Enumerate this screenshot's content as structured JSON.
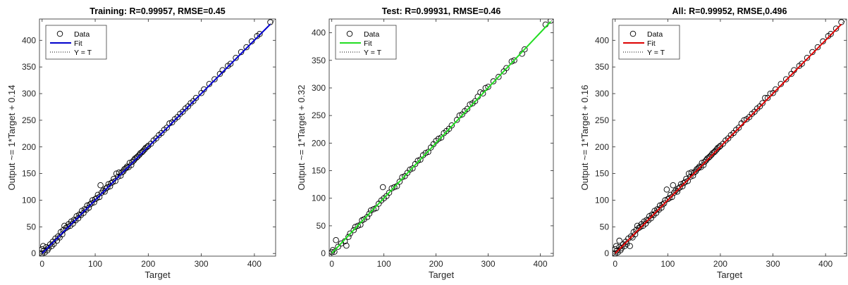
{
  "chart_data": [
    {
      "type": "scatter",
      "title": "Training: R=0.99957, RMSE=0.45",
      "xlabel": "Target",
      "ylabel": "Output ~= 1*Target + 0.14",
      "xlim": [
        -5,
        440
      ],
      "ylim": [
        -5,
        440
      ],
      "xticks": [
        "0",
        "100",
        "200",
        "300",
        "400"
      ],
      "yticks": [
        "0",
        "50",
        "100",
        "150",
        "200",
        "250",
        "300",
        "350",
        "400"
      ],
      "legend": {
        "placement": "top-left",
        "entries": [
          "Data",
          "Fit",
          "Y = T"
        ]
      },
      "fit": {
        "slope": 1,
        "intercept": 0.14,
        "color": "#0000cc"
      },
      "grid": false,
      "points": [
        [
          0,
          0
        ],
        [
          0,
          8
        ],
        [
          2,
          14
        ],
        [
          3,
          5
        ],
        [
          5,
          2
        ],
        [
          8,
          12
        ],
        [
          10,
          6
        ],
        [
          12,
          10
        ],
        [
          15,
          17
        ],
        [
          18,
          14
        ],
        [
          20,
          22
        ],
        [
          22,
          18
        ],
        [
          25,
          28
        ],
        [
          28,
          24
        ],
        [
          30,
          32
        ],
        [
          33,
          30
        ],
        [
          35,
          40
        ],
        [
          38,
          36
        ],
        [
          40,
          44
        ],
        [
          42,
          52
        ],
        [
          45,
          48
        ],
        [
          48,
          50
        ],
        [
          50,
          55
        ],
        [
          53,
          52
        ],
        [
          55,
          60
        ],
        [
          58,
          56
        ],
        [
          60,
          63
        ],
        [
          63,
          62
        ],
        [
          65,
          70
        ],
        [
          68,
          66
        ],
        [
          70,
          73
        ],
        [
          73,
          72
        ],
        [
          75,
          80
        ],
        [
          78,
          76
        ],
        [
          80,
          83
        ],
        [
          83,
          82
        ],
        [
          85,
          90
        ],
        [
          88,
          86
        ],
        [
          90,
          92
        ],
        [
          93,
          94
        ],
        [
          95,
          100
        ],
        [
          98,
          96
        ],
        [
          100,
          102
        ],
        [
          103,
          104
        ],
        [
          105,
          110
        ],
        [
          108,
          106
        ],
        [
          110,
          128
        ],
        [
          112,
          114
        ],
        [
          115,
          118
        ],
        [
          118,
          116
        ],
        [
          120,
          122
        ],
        [
          123,
          124
        ],
        [
          125,
          130
        ],
        [
          128,
          126
        ],
        [
          130,
          132
        ],
        [
          133,
          134
        ],
        [
          135,
          140
        ],
        [
          138,
          136
        ],
        [
          140,
          150
        ],
        [
          143,
          144
        ],
        [
          145,
          152
        ],
        [
          148,
          146
        ],
        [
          150,
          152
        ],
        [
          153,
          154
        ],
        [
          155,
          158
        ],
        [
          158,
          160
        ],
        [
          160,
          163
        ],
        [
          163,
          162
        ],
        [
          165,
          170
        ],
        [
          168,
          166
        ],
        [
          170,
          172
        ],
        [
          173,
          175
        ],
        [
          175,
          178
        ],
        [
          178,
          180
        ],
        [
          180,
          182
        ],
        [
          183,
          185
        ],
        [
          185,
          188
        ],
        [
          188,
          190
        ],
        [
          190,
          192
        ],
        [
          193,
          195
        ],
        [
          195,
          198
        ],
        [
          198,
          200
        ],
        [
          200,
          202
        ],
        [
          205,
          206
        ],
        [
          210,
          212
        ],
        [
          215,
          216
        ],
        [
          220,
          222
        ],
        [
          225,
          226
        ],
        [
          230,
          232
        ],
        [
          235,
          236
        ],
        [
          240,
          244
        ],
        [
          245,
          246
        ],
        [
          250,
          252
        ],
        [
          255,
          256
        ],
        [
          260,
          262
        ],
        [
          265,
          266
        ],
        [
          270,
          272
        ],
        [
          275,
          276
        ],
        [
          280,
          282
        ],
        [
          285,
          286
        ],
        [
          290,
          292
        ],
        [
          300,
          301
        ],
        [
          305,
          308
        ],
        [
          315,
          318
        ],
        [
          325,
          327
        ],
        [
          335,
          337
        ],
        [
          340,
          344
        ],
        [
          350,
          352
        ],
        [
          355,
          356
        ],
        [
          365,
          367
        ],
        [
          375,
          378
        ],
        [
          385,
          387
        ],
        [
          395,
          398
        ],
        [
          405,
          408
        ],
        [
          410,
          412
        ],
        [
          430,
          434
        ]
      ]
    },
    {
      "type": "scatter",
      "title": "Test: R=0.99931, RMSE=0.46",
      "xlabel": "Target",
      "ylabel": "Output ~= 1*Target + 0.32",
      "xlim": [
        -5,
        425
      ],
      "ylim": [
        -5,
        425
      ],
      "xticks": [
        "0",
        "100",
        "200",
        "300",
        "400"
      ],
      "yticks": [
        "0",
        "50",
        "100",
        "150",
        "200",
        "250",
        "300",
        "350",
        "400"
      ],
      "legend": {
        "placement": "top-left",
        "entries": [
          "Data",
          "Fit",
          "Y = T"
        ]
      },
      "fit": {
        "slope": 1,
        "intercept": 0.32,
        "color": "#22dd22"
      },
      "grid": false,
      "points": [
        [
          0,
          2
        ],
        [
          2,
          6
        ],
        [
          5,
          3
        ],
        [
          8,
          24
        ],
        [
          12,
          12
        ],
        [
          18,
          18
        ],
        [
          25,
          22
        ],
        [
          28,
          14
        ],
        [
          32,
          30
        ],
        [
          35,
          36
        ],
        [
          42,
          42
        ],
        [
          45,
          48
        ],
        [
          50,
          50
        ],
        [
          55,
          52
        ],
        [
          58,
          60
        ],
        [
          62,
          62
        ],
        [
          68,
          66
        ],
        [
          72,
          72
        ],
        [
          75,
          78
        ],
        [
          80,
          80
        ],
        [
          85,
          82
        ],
        [
          90,
          90
        ],
        [
          95,
          96
        ],
        [
          98,
          120
        ],
        [
          100,
          100
        ],
        [
          105,
          104
        ],
        [
          110,
          110
        ],
        [
          115,
          118
        ],
        [
          120,
          120
        ],
        [
          125,
          122
        ],
        [
          130,
          130
        ],
        [
          135,
          138
        ],
        [
          140,
          140
        ],
        [
          145,
          146
        ],
        [
          150,
          152
        ],
        [
          155,
          154
        ],
        [
          160,
          162
        ],
        [
          165,
          168
        ],
        [
          170,
          170
        ],
        [
          175,
          178
        ],
        [
          180,
          182
        ],
        [
          185,
          184
        ],
        [
          190,
          192
        ],
        [
          195,
          198
        ],
        [
          200,
          204
        ],
        [
          205,
          208
        ],
        [
          210,
          210
        ],
        [
          215,
          218
        ],
        [
          220,
          222
        ],
        [
          225,
          226
        ],
        [
          230,
          232
        ],
        [
          240,
          242
        ],
        [
          245,
          250
        ],
        [
          250,
          252
        ],
        [
          255,
          258
        ],
        [
          260,
          262
        ],
        [
          265,
          270
        ],
        [
          270,
          272
        ],
        [
          275,
          276
        ],
        [
          280,
          284
        ],
        [
          285,
          292
        ],
        [
          290,
          290
        ],
        [
          295,
          300
        ],
        [
          300,
          302
        ],
        [
          310,
          312
        ],
        [
          320,
          320
        ],
        [
          330,
          330
        ],
        [
          335,
          336
        ],
        [
          345,
          348
        ],
        [
          350,
          350
        ],
        [
          365,
          362
        ],
        [
          370,
          370
        ],
        [
          410,
          415
        ],
        [
          420,
          422
        ]
      ]
    },
    {
      "type": "scatter",
      "title": "All: R=0.99952, RMSE,0.496",
      "xlabel": "Target",
      "ylabel": "Output ~= 1*Target + 0.16",
      "xlim": [
        -5,
        440
      ],
      "ylim": [
        -5,
        440
      ],
      "xticks": [
        "0",
        "100",
        "200",
        "300",
        "400"
      ],
      "yticks": [
        "0",
        "50",
        "100",
        "150",
        "200",
        "250",
        "300",
        "350",
        "400"
      ],
      "legend": {
        "placement": "top-left",
        "entries": [
          "Data",
          "Fit",
          "Y = T"
        ]
      },
      "fit": {
        "slope": 1,
        "intercept": 0.16,
        "color": "#dd0000"
      },
      "grid": false,
      "points": [
        [
          0,
          0
        ],
        [
          0,
          8
        ],
        [
          2,
          14
        ],
        [
          3,
          5
        ],
        [
          5,
          2
        ],
        [
          8,
          12
        ],
        [
          8,
          24
        ],
        [
          10,
          6
        ],
        [
          12,
          10
        ],
        [
          15,
          17
        ],
        [
          18,
          14
        ],
        [
          20,
          22
        ],
        [
          22,
          18
        ],
        [
          25,
          28
        ],
        [
          28,
          14
        ],
        [
          30,
          32
        ],
        [
          33,
          30
        ],
        [
          35,
          40
        ],
        [
          38,
          36
        ],
        [
          40,
          44
        ],
        [
          42,
          52
        ],
        [
          45,
          48
        ],
        [
          48,
          50
        ],
        [
          50,
          55
        ],
        [
          53,
          52
        ],
        [
          55,
          60
        ],
        [
          58,
          56
        ],
        [
          60,
          63
        ],
        [
          63,
          62
        ],
        [
          65,
          70
        ],
        [
          68,
          66
        ],
        [
          70,
          73
        ],
        [
          73,
          72
        ],
        [
          75,
          80
        ],
        [
          78,
          76
        ],
        [
          80,
          83
        ],
        [
          83,
          82
        ],
        [
          85,
          90
        ],
        [
          88,
          86
        ],
        [
          90,
          92
        ],
        [
          93,
          94
        ],
        [
          95,
          100
        ],
        [
          98,
          120
        ],
        [
          100,
          102
        ],
        [
          103,
          104
        ],
        [
          105,
          110
        ],
        [
          108,
          106
        ],
        [
          110,
          128
        ],
        [
          112,
          114
        ],
        [
          115,
          118
        ],
        [
          118,
          116
        ],
        [
          120,
          122
        ],
        [
          123,
          124
        ],
        [
          125,
          130
        ],
        [
          128,
          126
        ],
        [
          130,
          132
        ],
        [
          133,
          134
        ],
        [
          135,
          140
        ],
        [
          138,
          136
        ],
        [
          140,
          150
        ],
        [
          143,
          144
        ],
        [
          145,
          152
        ],
        [
          148,
          146
        ],
        [
          150,
          152
        ],
        [
          153,
          154
        ],
        [
          155,
          158
        ],
        [
          158,
          160
        ],
        [
          160,
          163
        ],
        [
          163,
          162
        ],
        [
          165,
          170
        ],
        [
          168,
          166
        ],
        [
          170,
          172
        ],
        [
          173,
          175
        ],
        [
          175,
          178
        ],
        [
          178,
          180
        ],
        [
          180,
          182
        ],
        [
          183,
          185
        ],
        [
          185,
          188
        ],
        [
          188,
          190
        ],
        [
          190,
          192
        ],
        [
          193,
          195
        ],
        [
          195,
          198
        ],
        [
          198,
          200
        ],
        [
          200,
          202
        ],
        [
          205,
          206
        ],
        [
          210,
          212
        ],
        [
          215,
          216
        ],
        [
          220,
          222
        ],
        [
          225,
          226
        ],
        [
          230,
          232
        ],
        [
          235,
          236
        ],
        [
          240,
          244
        ],
        [
          245,
          250
        ],
        [
          250,
          252
        ],
        [
          255,
          256
        ],
        [
          260,
          262
        ],
        [
          265,
          266
        ],
        [
          270,
          272
        ],
        [
          275,
          276
        ],
        [
          280,
          282
        ],
        [
          285,
          292
        ],
        [
          290,
          292
        ],
        [
          295,
          300
        ],
        [
          300,
          301
        ],
        [
          305,
          308
        ],
        [
          315,
          318
        ],
        [
          325,
          327
        ],
        [
          335,
          337
        ],
        [
          340,
          344
        ],
        [
          350,
          352
        ],
        [
          355,
          356
        ],
        [
          365,
          367
        ],
        [
          375,
          378
        ],
        [
          385,
          387
        ],
        [
          395,
          398
        ],
        [
          405,
          408
        ],
        [
          410,
          412
        ],
        [
          420,
          422
        ],
        [
          430,
          434
        ]
      ]
    }
  ]
}
